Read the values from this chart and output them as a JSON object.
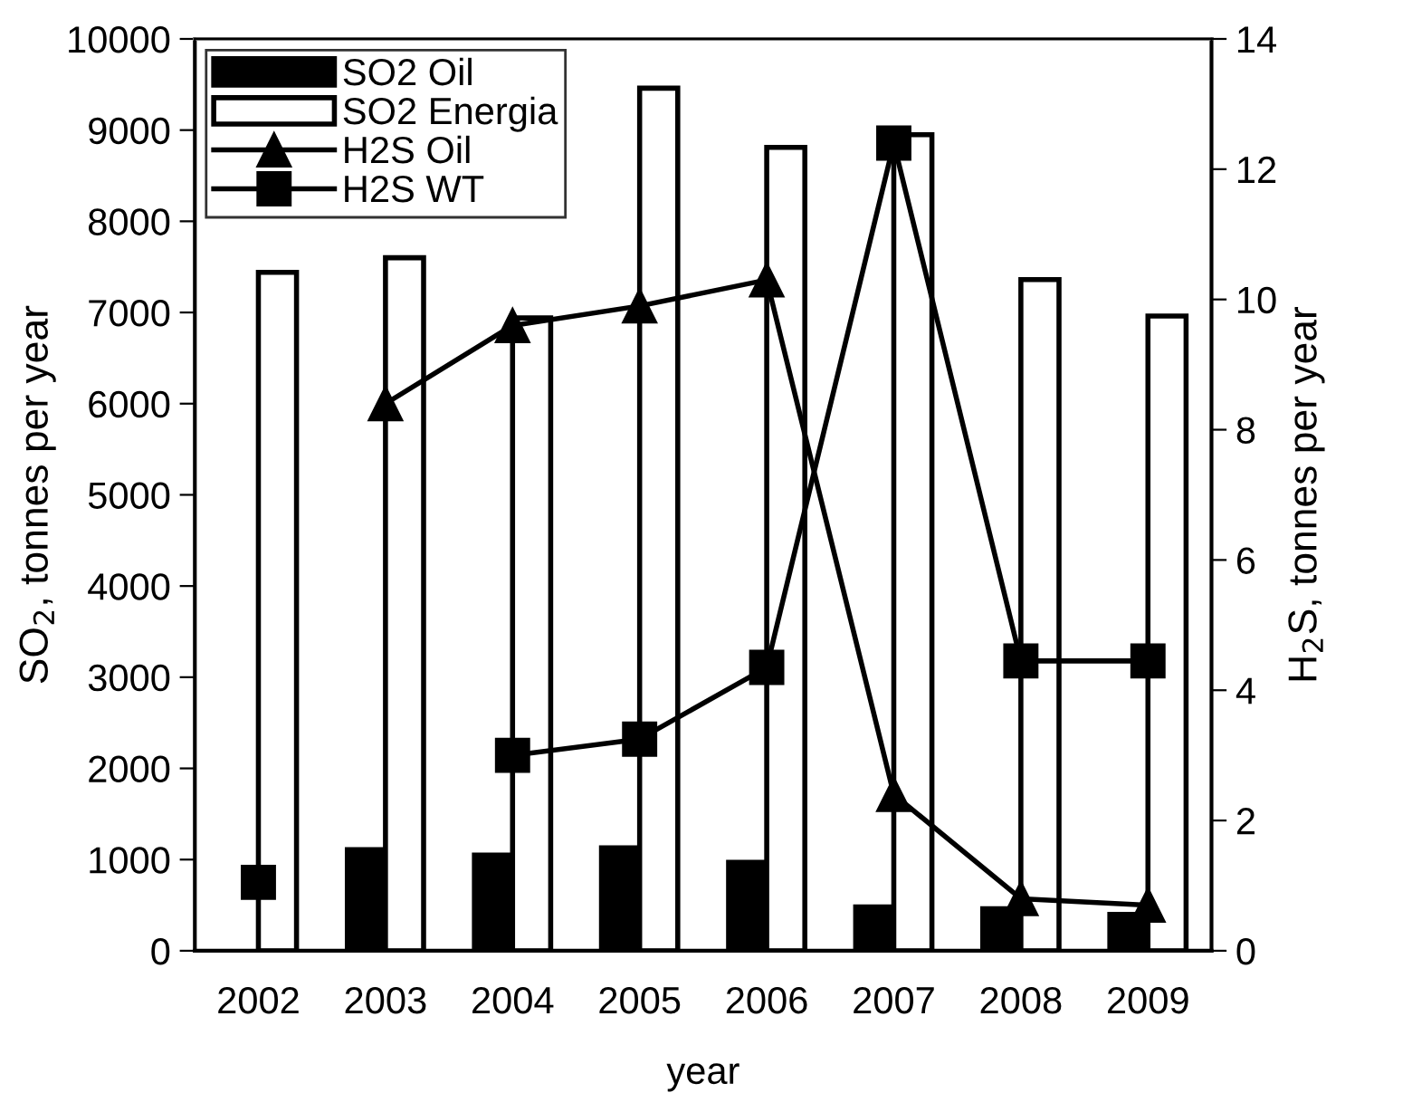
{
  "chart_data": {
    "type": "bar",
    "xlabel": "year",
    "ylabel": "SO$_{2}$, tonnes per year",
    "y2label": "H$_{2}$S, tonnes per year",
    "categories": [
      "2002",
      "2003",
      "2004",
      "2005",
      "2006",
      "2007",
      "2008",
      "2009"
    ],
    "series": [
      {
        "name": "SO2 Oil",
        "color": "#000000",
        "values": [
          null,
          1110,
          1050,
          1130,
          970,
          480,
          460,
          400
        ]
      },
      {
        "name": "SO2 Energia",
        "color": "#ffffff",
        "values": [
          7440,
          7600,
          6940,
          9460,
          8810,
          8950,
          7360,
          6960
        ]
      },
      {
        "name": "H2S Oil",
        "type": "line",
        "axis": "y2",
        "color": "#000000",
        "marker": "triangle",
        "values": [
          null,
          8.4,
          9.6,
          9.9,
          10.3,
          2.4,
          0.8,
          0.7
        ]
      },
      {
        "name": "H2S WT",
        "type": "line",
        "axis": "y2",
        "color": "#000000",
        "marker": "square",
        "values": [
          1.05,
          null,
          3.0,
          3.25,
          4.35,
          12.4,
          4.45,
          4.45
        ]
      }
    ],
    "ylim": [
      0,
      10000
    ],
    "yticks": [
      0,
      1000,
      2000,
      3000,
      4000,
      5000,
      6000,
      7000,
      8000,
      9000,
      10000
    ],
    "y2lim": [
      0,
      14
    ],
    "y2ticks": [
      0,
      2,
      4,
      6,
      8,
      10,
      12,
      14
    ],
    "legend": "top left",
    "grid": false,
    "line_style": "solid"
  }
}
